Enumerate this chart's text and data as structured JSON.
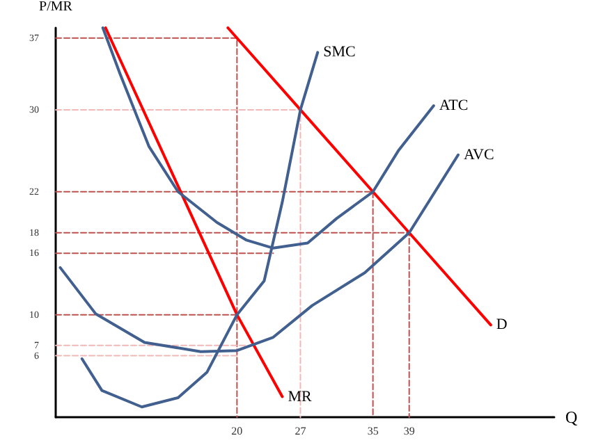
{
  "chart_data": {
    "type": "line",
    "xlabel": "Q",
    "ylabel": "P/MR",
    "xlim": [
      0,
      55
    ],
    "ylim": [
      0,
      38
    ],
    "xticks": [
      20,
      27,
      35,
      39
    ],
    "yticks": [
      6,
      7,
      10,
      16,
      18,
      22,
      30,
      37
    ],
    "grid": false,
    "legend": false,
    "marker": "none",
    "series": [
      {
        "color": "#c0504d",
        "line_style": "dashed",
        "x": [
          0,
          20,
          20
        ],
        "values": [
          37,
          37,
          0
        ]
      },
      {
        "color": "#f2b8b8",
        "line_style": "dashed",
        "x": [
          0,
          27,
          27
        ],
        "values": [
          30,
          30,
          0
        ]
      },
      {
        "color": "#c0504d",
        "line_style": "dashed",
        "x": [
          0,
          35,
          35
        ],
        "values": [
          22,
          22,
          0
        ]
      },
      {
        "color": "#c0504d",
        "line_style": "dashed",
        "x": [
          0,
          39,
          39
        ],
        "values": [
          18,
          18,
          0
        ]
      },
      {
        "color": "#c0504d",
        "line_style": "dashed",
        "x": [
          0,
          24
        ],
        "values": [
          16,
          16
        ]
      },
      {
        "color": "#c0504d",
        "line_style": "dashed",
        "x": [
          0,
          20
        ],
        "values": [
          10,
          10
        ]
      },
      {
        "color": "#f2b8b8",
        "line_style": "dashed",
        "x": [
          0,
          21
        ],
        "values": [
          7,
          7
        ]
      },
      {
        "color": "#f2b8b8",
        "line_style": "dashed",
        "x": [
          0,
          20
        ],
        "values": [
          6,
          6
        ]
      },
      {
        "name": "D",
        "color": "#ff0000",
        "line_style": "solid",
        "x": [
          19,
          20,
          27,
          35,
          39,
          48
        ],
        "values": [
          38,
          37,
          30,
          22,
          18,
          9
        ]
      },
      {
        "name": "MR",
        "color": "#ff0000",
        "line_style": "solid",
        "x": [
          5.5,
          20,
          25
        ],
        "values": [
          38,
          10,
          2
        ]
      },
      {
        "name": "SMC",
        "color": "#41608f",
        "line_style": "solid",
        "x": [
          2.9,
          5.1,
          9.5,
          13.5,
          16.7,
          20,
          23,
          25,
          27,
          28.9
        ],
        "values": [
          5.7,
          2.6,
          1,
          1.9,
          4.4,
          10,
          13.3,
          21,
          30,
          35.6
        ]
      },
      {
        "name": "ATC",
        "color": "#41608f",
        "line_style": "solid",
        "x": [
          5.2,
          7.1,
          10.3,
          13.5,
          17.8,
          21,
          24,
          27.8,
          31,
          35,
          37.8,
          41.7
        ],
        "values": [
          38,
          33.5,
          26.4,
          22,
          19,
          17.3,
          16.5,
          17,
          19.4,
          22,
          26,
          30.4
        ]
      },
      {
        "name": "AVC",
        "color": "#41608f",
        "line_style": "solid",
        "x": [
          0.5,
          4.4,
          9.8,
          16,
          20,
          24,
          28.3,
          34.1,
          39,
          44.4
        ],
        "values": [
          14.6,
          10.1,
          7.3,
          6.4,
          6.5,
          7.8,
          10.9,
          14.1,
          18,
          25.6
        ]
      }
    ]
  }
}
